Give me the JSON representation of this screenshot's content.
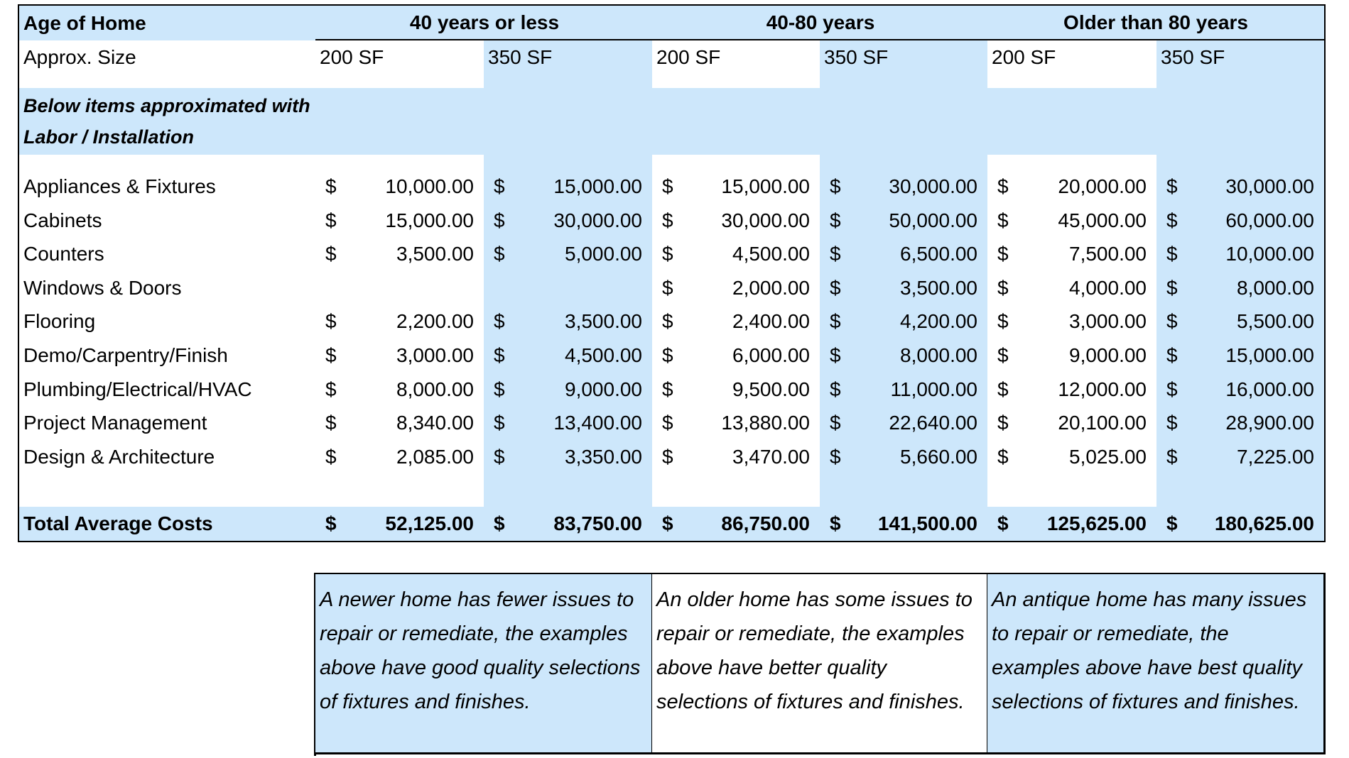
{
  "header": {
    "label": "Age of Home",
    "groups": [
      "40 years or less",
      "40-80 years",
      "Older than 80 years"
    ]
  },
  "sizes": {
    "label": "Approx. Size",
    "values": [
      "200 SF",
      "350 SF",
      "200 SF",
      "350 SF",
      "200 SF",
      "350 SF"
    ]
  },
  "note": "Below items approximated with Labor / Installation",
  "rows": [
    {
      "label": "Appliances & Fixtures",
      "values": [
        {
          "symbol": "$",
          "amount": "10,000.00"
        },
        {
          "symbol": "$",
          "amount": "15,000.00"
        },
        {
          "symbol": "$",
          "amount": "15,000.00"
        },
        {
          "symbol": "$",
          "amount": "30,000.00"
        },
        {
          "symbol": "$",
          "amount": "20,000.00"
        },
        {
          "symbol": "$",
          "amount": "30,000.00"
        }
      ]
    },
    {
      "label": "Cabinets",
      "values": [
        {
          "symbol": "$",
          "amount": "15,000.00"
        },
        {
          "symbol": "$",
          "amount": "30,000.00"
        },
        {
          "symbol": "$",
          "amount": "30,000.00"
        },
        {
          "symbol": "$",
          "amount": "50,000.00"
        },
        {
          "symbol": "$",
          "amount": "45,000.00"
        },
        {
          "symbol": "$",
          "amount": "60,000.00"
        }
      ]
    },
    {
      "label": "Counters",
      "values": [
        {
          "symbol": "$",
          "amount": "3,500.00"
        },
        {
          "symbol": "$",
          "amount": "5,000.00"
        },
        {
          "symbol": "$",
          "amount": "4,500.00"
        },
        {
          "symbol": "$",
          "amount": "6,500.00"
        },
        {
          "symbol": "$",
          "amount": "7,500.00"
        },
        {
          "symbol": "$",
          "amount": "10,000.00"
        }
      ]
    },
    {
      "label": "Windows & Doors",
      "values": [
        null,
        null,
        {
          "symbol": "$",
          "amount": "2,000.00"
        },
        {
          "symbol": "$",
          "amount": "3,500.00"
        },
        {
          "symbol": "$",
          "amount": "4,000.00"
        },
        {
          "symbol": "$",
          "amount": "8,000.00"
        }
      ]
    },
    {
      "label": "Flooring",
      "values": [
        {
          "symbol": "$",
          "amount": "2,200.00"
        },
        {
          "symbol": "$",
          "amount": "3,500.00"
        },
        {
          "symbol": "$",
          "amount": "2,400.00"
        },
        {
          "symbol": "$",
          "amount": "4,200.00"
        },
        {
          "symbol": "$",
          "amount": "3,000.00"
        },
        {
          "symbol": "$",
          "amount": "5,500.00"
        }
      ]
    },
    {
      "label": "Demo/Carpentry/Finish",
      "values": [
        {
          "symbol": "$",
          "amount": "3,000.00"
        },
        {
          "symbol": "$",
          "amount": "4,500.00"
        },
        {
          "symbol": "$",
          "amount": "6,000.00"
        },
        {
          "symbol": "$",
          "amount": "8,000.00"
        },
        {
          "symbol": "$",
          "amount": "9,000.00"
        },
        {
          "symbol": "$",
          "amount": "15,000.00"
        }
      ]
    },
    {
      "label": "Plumbing/Electrical/HVAC",
      "values": [
        {
          "symbol": "$",
          "amount": "8,000.00"
        },
        {
          "symbol": "$",
          "amount": "9,000.00"
        },
        {
          "symbol": "$",
          "amount": "9,500.00"
        },
        {
          "symbol": "$",
          "amount": "11,000.00"
        },
        {
          "symbol": "$",
          "amount": "12,000.00"
        },
        {
          "symbol": "$",
          "amount": "16,000.00"
        }
      ]
    },
    {
      "label": "Project Management",
      "values": [
        {
          "symbol": "$",
          "amount": "8,340.00"
        },
        {
          "symbol": "$",
          "amount": "13,400.00"
        },
        {
          "symbol": "$",
          "amount": "13,880.00"
        },
        {
          "symbol": "$",
          "amount": "22,640.00"
        },
        {
          "symbol": "$",
          "amount": "20,100.00"
        },
        {
          "symbol": "$",
          "amount": "28,900.00"
        }
      ]
    },
    {
      "label": "Design & Architecture",
      "values": [
        {
          "symbol": "$",
          "amount": "2,085.00"
        },
        {
          "symbol": "$",
          "amount": "3,350.00"
        },
        {
          "symbol": "$",
          "amount": "3,470.00"
        },
        {
          "symbol": "$",
          "amount": "5,660.00"
        },
        {
          "symbol": "$",
          "amount": "5,025.00"
        },
        {
          "symbol": "$",
          "amount": "7,225.00"
        }
      ]
    }
  ],
  "total": {
    "label": "Total Average Costs",
    "values": [
      {
        "symbol": "$",
        "amount": "52,125.00"
      },
      {
        "symbol": "$",
        "amount": "83,750.00"
      },
      {
        "symbol": "$",
        "amount": "86,750.00"
      },
      {
        "symbol": "$",
        "amount": "141,500.00"
      },
      {
        "symbol": "$",
        "amount": "125,625.00"
      },
      {
        "symbol": "$",
        "amount": "180,625.00"
      }
    ]
  },
  "notes": [
    "A newer home has fewer issues to repair or remediate, the examples above have good quality selections of fixtures and finishes.",
    "An older home has some issues to repair or remediate, the examples above have better quality selections of fixtures and finishes.",
    "An antique home has many issues to repair or remediate, the examples above have best quality selections of fixtures and finishes."
  ]
}
